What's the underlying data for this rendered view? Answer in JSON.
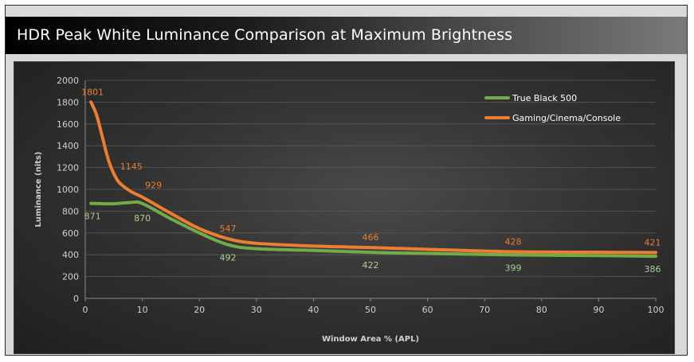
{
  "page": {
    "title": "HDR Peak White Luminance Comparison at Maximum Brightness"
  },
  "colors": {
    "green": "#70ad47",
    "green_label": "#a9d18e",
    "orange": "#ed7d31",
    "grid": "#5a5a5a"
  },
  "chart_data": {
    "type": "line",
    "xlabel": "Window Area % (APL)",
    "ylabel": "Luminance (nits)",
    "xlim": [
      0,
      100
    ],
    "ylim": [
      0,
      2000
    ],
    "x_ticks": [
      0,
      10,
      20,
      30,
      40,
      50,
      60,
      70,
      80,
      90,
      100
    ],
    "y_ticks": [
      0,
      200,
      400,
      600,
      800,
      1000,
      1200,
      1400,
      1600,
      1800,
      2000
    ],
    "grid": "horizontal",
    "legend_position": "top-right",
    "series": [
      {
        "name": "True Black 500",
        "color": "#70ad47",
        "x": [
          1,
          5,
          8,
          10,
          15,
          20,
          25,
          30,
          40,
          50,
          60,
          75,
          90,
          100
        ],
        "y": [
          871,
          868,
          880,
          870,
          730,
          600,
          492,
          455,
          440,
          422,
          412,
          399,
          392,
          386
        ]
      },
      {
        "name": "Gaming/Cinema/Console",
        "color": "#ed7d31",
        "x": [
          1,
          2,
          3,
          4,
          5,
          6,
          8,
          10,
          15,
          20,
          25,
          30,
          40,
          50,
          60,
          75,
          90,
          100
        ],
        "y": [
          1801,
          1680,
          1480,
          1280,
          1145,
          1060,
          980,
          929,
          780,
          640,
          547,
          505,
          480,
          466,
          450,
          428,
          423,
          421
        ]
      }
    ],
    "data_labels": [
      {
        "series": 0,
        "x": 1,
        "y": 871,
        "text": "871"
      },
      {
        "series": 0,
        "x": 10,
        "y": 870,
        "text": "870"
      },
      {
        "series": 0,
        "x": 25,
        "y": 492,
        "text": "492"
      },
      {
        "series": 0,
        "x": 50,
        "y": 422,
        "text": "422"
      },
      {
        "series": 0,
        "x": 75,
        "y": 399,
        "text": "399"
      },
      {
        "series": 0,
        "x": 100,
        "y": 386,
        "text": "386"
      },
      {
        "series": 1,
        "x": 1,
        "y": 1801,
        "text": "1801"
      },
      {
        "series": 1,
        "x": 5,
        "y": 1145,
        "text": "1145"
      },
      {
        "series": 1,
        "x": 10,
        "y": 929,
        "text": "929"
      },
      {
        "series": 1,
        "x": 25,
        "y": 547,
        "text": "547"
      },
      {
        "series": 1,
        "x": 50,
        "y": 466,
        "text": "466"
      },
      {
        "series": 1,
        "x": 75,
        "y": 428,
        "text": "428"
      },
      {
        "series": 1,
        "x": 100,
        "y": 421,
        "text": "421"
      }
    ]
  }
}
